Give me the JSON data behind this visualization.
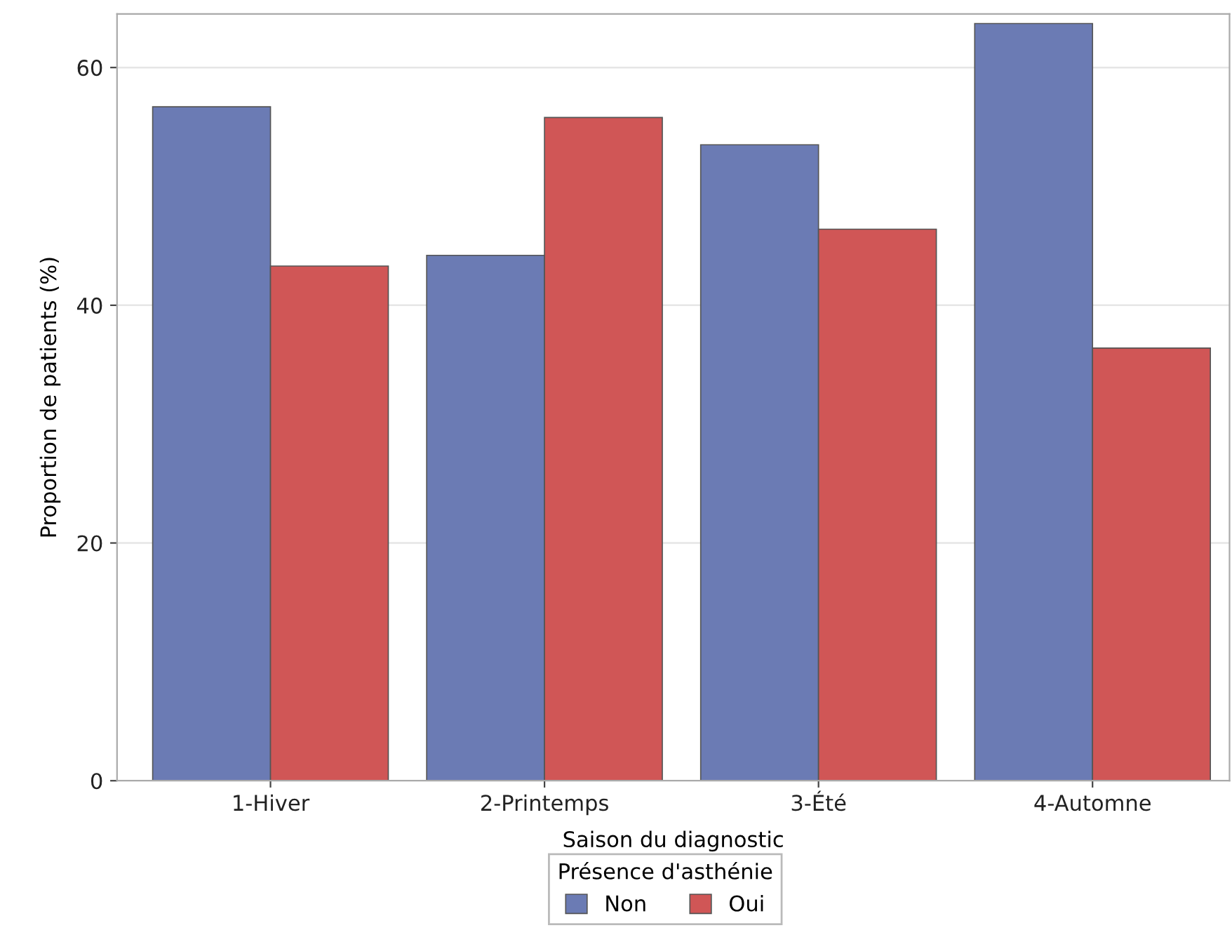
{
  "chart_data": {
    "type": "bar",
    "xlabel": "Saison du diagnostic",
    "ylabel": "Proportion de patients (%)",
    "legend_title": "Présence d'asthénie",
    "categories": [
      "1-Hiver",
      "2-Printemps",
      "3-Été",
      "4-Automne"
    ],
    "series": [
      {
        "name": "Non",
        "color": "#6b7bb4",
        "values": [
          56.7,
          44.2,
          53.5,
          63.7
        ]
      },
      {
        "name": "Oui",
        "color": "#d05656",
        "values": [
          43.3,
          55.8,
          46.4,
          36.4
        ]
      }
    ],
    "ylim": [
      0,
      64.5
    ],
    "yticks": [
      0,
      20,
      40,
      60
    ],
    "grid": "y",
    "legend": "bottom"
  }
}
